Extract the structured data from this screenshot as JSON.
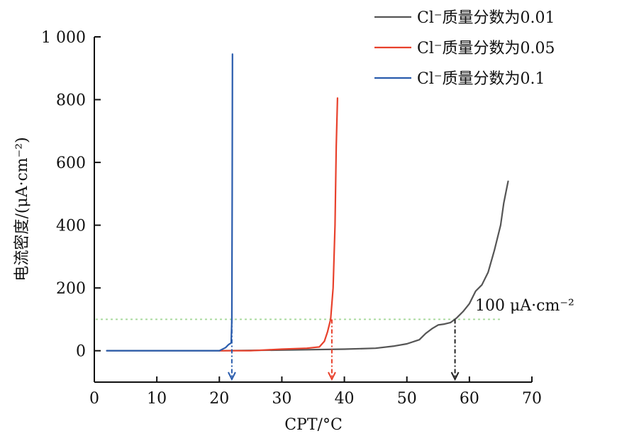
{
  "chart_data": {
    "type": "line",
    "title": "",
    "xlabel": "CPT/°C",
    "ylabel": "电流密度/(μA·cm⁻²)",
    "xlim": [
      0,
      70
    ],
    "ylim": [
      -100,
      1000
    ],
    "x_ticks": [
      0,
      10,
      20,
      30,
      40,
      50,
      60,
      70
    ],
    "y_ticks": [
      0,
      200,
      400,
      600,
      800,
      1000
    ],
    "x_tick_labels": [
      "0",
      "10",
      "20",
      "30",
      "40",
      "50",
      "60",
      "70"
    ],
    "y_tick_labels": [
      "0",
      "200",
      "400",
      "600",
      "800",
      "1 000"
    ],
    "grid": false,
    "legend_position": "top-right",
    "series": [
      {
        "name": "Cl⁻质量分数为0.01",
        "color": "#555555",
        "points": [
          [
            2,
            0
          ],
          [
            10,
            0
          ],
          [
            20,
            0
          ],
          [
            30,
            2
          ],
          [
            40,
            5
          ],
          [
            45,
            8
          ],
          [
            48,
            15
          ],
          [
            50,
            22
          ],
          [
            52,
            35
          ],
          [
            53,
            55
          ],
          [
            54,
            70
          ],
          [
            55,
            82
          ],
          [
            56,
            85
          ],
          [
            57,
            90
          ],
          [
            58,
            105
          ],
          [
            59,
            125
          ],
          [
            60,
            150
          ],
          [
            61,
            190
          ],
          [
            62,
            210
          ],
          [
            63,
            250
          ],
          [
            64,
            320
          ],
          [
            65,
            400
          ],
          [
            65.5,
            470
          ],
          [
            66,
            520
          ],
          [
            66.2,
            540
          ]
        ]
      },
      {
        "name": "Cl⁻质量分数为0.05",
        "color": "#e8412c",
        "points": [
          [
            20,
            0
          ],
          [
            25,
            0
          ],
          [
            27,
            2
          ],
          [
            30,
            5
          ],
          [
            34,
            8
          ],
          [
            36,
            12
          ],
          [
            36.8,
            30
          ],
          [
            37.3,
            60
          ],
          [
            37.8,
            100
          ],
          [
            38.2,
            200
          ],
          [
            38.5,
            400
          ],
          [
            38.7,
            650
          ],
          [
            38.9,
            805
          ]
        ]
      },
      {
        "name": "Cl⁻质量分数为0.1",
        "color": "#2a5cad",
        "points": [
          [
            2,
            0
          ],
          [
            10,
            0
          ],
          [
            20,
            0
          ],
          [
            21,
            10
          ],
          [
            21.5,
            20
          ],
          [
            21.9,
            25
          ],
          [
            22.0,
            100
          ],
          [
            22.05,
            500
          ],
          [
            22.1,
            945
          ]
        ]
      }
    ],
    "threshold": {
      "y": 100,
      "color": "#a6d99a",
      "label": "100 μA·cm⁻²"
    },
    "markers": [
      {
        "x": 22,
        "y": 100,
        "color": "#2a5cad"
      },
      {
        "x": 38,
        "y": 100,
        "color": "#e8412c"
      },
      {
        "x": 57.7,
        "y": 100,
        "color": "#222222"
      }
    ]
  }
}
